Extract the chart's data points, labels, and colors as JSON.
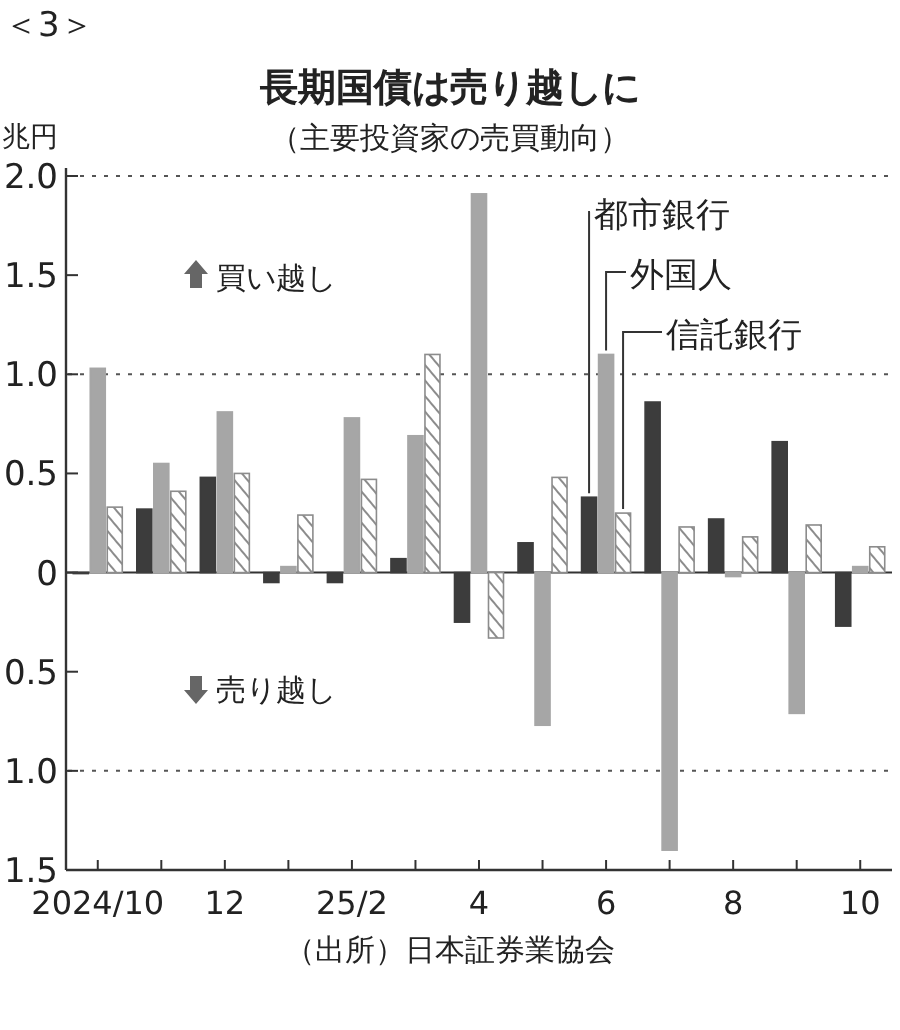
{
  "chart_data": {
    "type": "bar",
    "title": "長期国債は売り越しに",
    "subtitle": "（主要投資家の売買動向）",
    "ylabel": "兆円",
    "annotations": [
      "＜3＞",
      "買い越し",
      "売り越し",
      "（出所）日本証券業協会"
    ],
    "categories": [
      "2024/10",
      null,
      "12",
      null,
      "25/2",
      null,
      "4",
      null,
      "6",
      null,
      "8",
      null,
      "10"
    ],
    "series": [
      {
        "name": "都市銀行",
        "color": "#3c3c3c",
        "values": [
          0,
          0.32,
          0.48,
          -0.05,
          -0.05,
          0.07,
          -0.25,
          0.15,
          0.38,
          0.86,
          0.27,
          0.66,
          -0.27
        ]
      },
      {
        "name": "外国人",
        "color": "#a6a6a6",
        "values": [
          1.03,
          0.55,
          0.81,
          0.03,
          0.78,
          0.69,
          1.91,
          -0.77,
          1.1,
          -1.4,
          -0.02,
          -0.71,
          0.03
        ]
      },
      {
        "name": "信託銀行",
        "color": "#8c8c8c",
        "values": [
          0.33,
          0.41,
          0.5,
          0.29,
          0.47,
          1.1,
          -0.33,
          0.48,
          0.3,
          0.23,
          0.18,
          0.24,
          0.13
        ]
      }
    ],
    "ylim": [
      -1.5,
      2.0
    ],
    "yticks": [
      {
        "value": -1.5,
        "label": "1.5"
      },
      {
        "value": -1.0,
        "label": "1.0"
      },
      {
        "value": -0.5,
        "label": "0.5"
      },
      0,
      0.5,
      {
        "value": 1.0,
        "label": "1.0"
      },
      {
        "value": 1.5,
        "label": "1.5"
      },
      {
        "value": 2.0,
        "label": "2.0"
      }
    ],
    "ref_lines": [
      {
        "axis": "y",
        "value": 1.0,
        "line_style": "dotted"
      },
      {
        "axis": "y",
        "value": -1.0,
        "line_style": "dotted"
      }
    ],
    "grid": false,
    "legend": false
  }
}
